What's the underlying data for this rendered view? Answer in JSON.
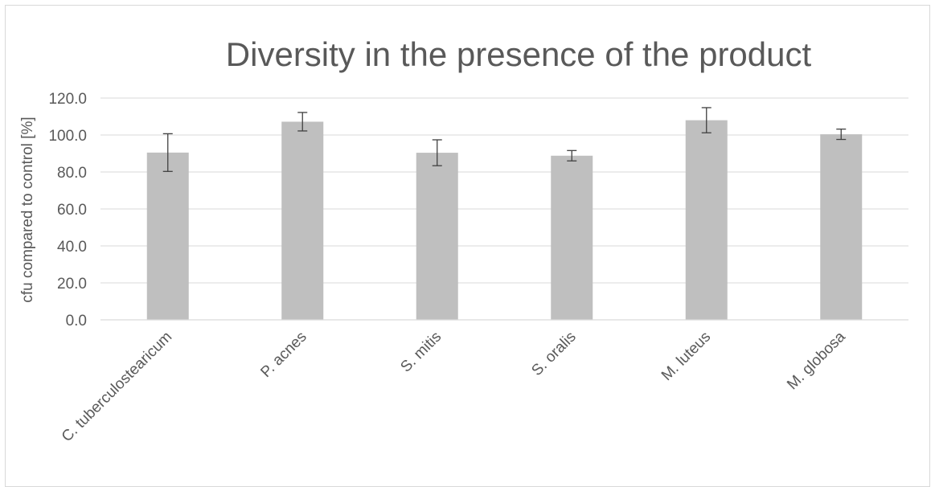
{
  "chart_data": {
    "type": "bar",
    "title": "Diversity in the presence of the product",
    "xlabel": "",
    "ylabel": "cfu compared to control [%]",
    "ylim": [
      0,
      120
    ],
    "yticks": [
      "0.0",
      "20.0",
      "40.0",
      "60.0",
      "80.0",
      "100.0",
      "120.0"
    ],
    "grid": true,
    "categories": [
      "C. tuberculostearicum",
      "P. acnes",
      "S. mitis",
      "S. oralis",
      "M. luteus",
      "M. globosa"
    ],
    "values": [
      90.5,
      107.2,
      90.4,
      88.8,
      108.0,
      100.4
    ],
    "errors": [
      10.2,
      5.0,
      7.0,
      2.8,
      6.8,
      2.8
    ],
    "colors": {
      "bar": "#bfbfbf",
      "error": "#404040",
      "grid": "#d9d9d9",
      "text": "#595959"
    }
  }
}
